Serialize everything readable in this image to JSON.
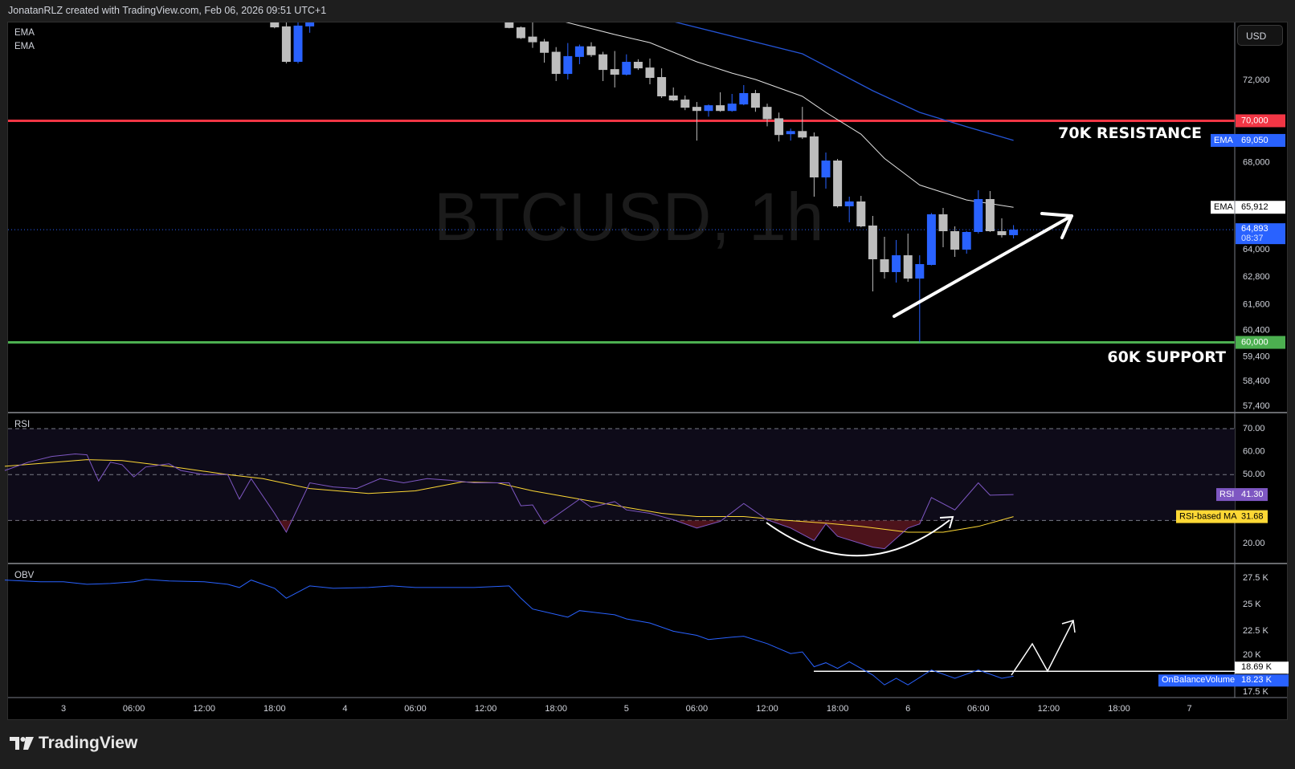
{
  "header": {
    "title": "JonatanRLZ created with TradingView.com, Feb 06, 2026 09:51 UTC+1"
  },
  "symbol_watermark": "BTCUSD, 1h",
  "currency_button": "USD",
  "legends": {
    "ema1": "EMA",
    "ema2": "EMA",
    "rsi": "RSI",
    "obv": "OBV"
  },
  "brand": {
    "name": "TradingView"
  },
  "colors": {
    "up": "#2962ff",
    "down": "#bdbdbd",
    "resistance": "#f23645",
    "support": "#4caf50",
    "ema_fast": "#e0e0e0",
    "ema_slow": "#2454d6",
    "rsi": "#7e57c2",
    "rsi_ma": "#fdd835",
    "obv": "#2962ff"
  },
  "annotations": {
    "resistance_text": "70K RESISTANCE",
    "support_text": "60K SUPPORT"
  },
  "levels": {
    "resistance": 70000,
    "support": 60000,
    "obv_line": 18.69
  },
  "price_axis": {
    "ticks": [
      "72,000",
      "68,000",
      "64,000",
      "62,800",
      "61,600",
      "60,400",
      "59,400",
      "58,400",
      "57,400"
    ],
    "resistance_label": "70,000",
    "support_label": "60,000",
    "ema_slow_tag": "EMA",
    "ema_slow_value": "69,050",
    "ema_fast_tag": "EMA",
    "ema_fast_value": "65,912",
    "last_price": "64,893",
    "countdown": "08:37"
  },
  "time_axis": [
    "3",
    "06:00",
    "12:00",
    "18:00",
    "4",
    "06:00",
    "12:00",
    "18:00",
    "5",
    "06:00",
    "12:00",
    "18:00",
    "6",
    "06:00",
    "12:00",
    "18:00",
    "7"
  ],
  "rsi_axis": {
    "ticks": [
      "70.00",
      "60.00",
      "50.00",
      "20.00"
    ],
    "rsi_tag": "RSI",
    "rsi_value": "41.30",
    "ma_tag": "RSI-based MA",
    "ma_value": "31.68"
  },
  "obv_axis": {
    "ticks": [
      "27.5 K",
      "25 K",
      "22.5 K",
      "20 K",
      "17.5 K"
    ],
    "line_value": "18.69 K",
    "obv_tag": "OnBalanceVolume",
    "obv_value": "18.23 K"
  },
  "chart_data": {
    "type": "candlestick",
    "symbol": "BTCUSD",
    "interval": "1h",
    "candle_fields": [
      "time",
      "open",
      "high",
      "low",
      "close"
    ],
    "candles": [
      [
        "02-03 18:00",
        75050,
        75100,
        74650,
        74700
      ],
      [
        "02-03 19:00",
        74750,
        75100,
        72850,
        72930
      ],
      [
        "02-03 20:00",
        72930,
        75200,
        72850,
        74790
      ],
      [
        "02-03 21:00",
        74750,
        75200,
        74420,
        75050
      ],
      [
        "02-04 14:00",
        75000,
        75050,
        74650,
        74670
      ],
      [
        "02-04 15:00",
        74700,
        74750,
        74100,
        74140
      ],
      [
        "02-04 16:00",
        74220,
        75000,
        73640,
        73930
      ],
      [
        "02-04 17:00",
        73970,
        74100,
        72890,
        73390
      ],
      [
        "02-04 18:00",
        73440,
        73680,
        71960,
        72320
      ],
      [
        "02-04 19:00",
        72320,
        73890,
        72040,
        73220
      ],
      [
        "02-04 20:00",
        73180,
        73810,
        72810,
        73720
      ],
      [
        "02-04 21:00",
        73720,
        73930,
        73180,
        73270
      ],
      [
        "02-04 22:00",
        73310,
        73440,
        71960,
        72520
      ],
      [
        "02-04 23:00",
        72560,
        73480,
        71640,
        72280
      ],
      [
        "02-05 00:00",
        72280,
        73310,
        72240,
        72930
      ],
      [
        "02-05 01:00",
        72930,
        73060,
        72520,
        72600
      ],
      [
        "02-05 02:00",
        72640,
        73100,
        71800,
        72120
      ],
      [
        "02-05 03:00",
        72160,
        72600,
        71120,
        71200
      ],
      [
        "02-05 04:00",
        71240,
        71640,
        70960,
        71000
      ],
      [
        "02-05 05:00",
        71040,
        71240,
        70520,
        70640
      ],
      [
        "02-05 06:00",
        70680,
        70920,
        69040,
        70480
      ],
      [
        "02-05 07:00",
        70480,
        70800,
        70200,
        70760
      ],
      [
        "02-05 08:00",
        70760,
        71400,
        70440,
        70480
      ],
      [
        "02-05 09:00",
        70480,
        71320,
        70440,
        70840
      ],
      [
        "02-05 10:00",
        70800,
        71760,
        70760,
        71360
      ],
      [
        "02-05 11:00",
        71360,
        71520,
        70440,
        70640
      ],
      [
        "02-05 12:00",
        70680,
        70840,
        69730,
        70080
      ],
      [
        "02-05 13:00",
        70120,
        70400,
        69000,
        69310
      ],
      [
        "02-05 14:00",
        69350,
        69620,
        69040,
        69500
      ],
      [
        "02-05 15:00",
        69500,
        70680,
        69120,
        69190
      ],
      [
        "02-05 16:00",
        69243,
        69434,
        66400,
        67296
      ],
      [
        "02-05 17:00",
        67296,
        68472,
        66772,
        68090
      ],
      [
        "02-05 18:00",
        68090,
        68166,
        65900,
        65957
      ],
      [
        "02-05 19:00",
        65957,
        66400,
        65225,
        66179
      ],
      [
        "02-05 20:00",
        66179,
        66437,
        65000,
        65043
      ],
      [
        "02-05 21:00",
        65080,
        65517,
        62166,
        63571
      ],
      [
        "02-05 22:00",
        63571,
        64573,
        62725,
        63006
      ],
      [
        "02-05 23:00",
        63006,
        64429,
        62550,
        63749
      ],
      [
        "02-06 00:00",
        63749,
        64717,
        62585,
        62725
      ],
      [
        "02-06 01:00",
        62725,
        63749,
        60000,
        63358
      ],
      [
        "02-06 02:00",
        63322,
        65650,
        63300,
        65591
      ],
      [
        "02-06 03:00",
        65591,
        65884,
        64105,
        64825
      ],
      [
        "02-06 04:00",
        64825,
        65043,
        63677,
        63999
      ],
      [
        "02-06 05:00",
        63999,
        64825,
        63820,
        64790
      ],
      [
        "02-06 06:00",
        64790,
        66698,
        64720,
        66289
      ],
      [
        "02-06 07:00",
        66289,
        66660,
        64790,
        64825
      ],
      [
        "02-06 08:00",
        64825,
        65407,
        64540,
        64647
      ],
      [
        "02-06 09:00",
        64647,
        65100,
        64500,
        64893
      ]
    ],
    "ema_fast": [
      [
        "02-04 18:00",
        75100
      ],
      [
        "02-04 23:00",
        74330
      ],
      [
        "02-05 02:00",
        73910
      ],
      [
        "02-05 06:00",
        72930
      ],
      [
        "02-05 09:00",
        72360
      ],
      [
        "02-05 11:00",
        72040
      ],
      [
        "02-05 15:00",
        71200
      ],
      [
        "02-05 17:00",
        70410
      ],
      [
        "02-05 20:00",
        69350
      ],
      [
        "02-05 22:00",
        68190
      ],
      [
        "02-06 01:00",
        66940
      ],
      [
        "02-06 05:00",
        66250
      ],
      [
        "02-06 09:00",
        65912
      ]
    ],
    "ema_slow": [
      [
        "02-05 02:00",
        75300
      ],
      [
        "02-05 04:00",
        75000
      ],
      [
        "02-05 15:00",
        73340
      ],
      [
        "02-05 21:00",
        71480
      ],
      [
        "02-06 01:00",
        70410
      ],
      [
        "02-06 05:00",
        69710
      ],
      [
        "02-06 09:00",
        69050
      ]
    ],
    "rsi": [
      [
        "02-02 19:00",
        51.8
      ],
      [
        "02-02 21:00",
        55.4
      ],
      [
        "02-02 23:00",
        57.9
      ],
      [
        "02-03 01:00",
        59
      ],
      [
        "02-03 02:00",
        58.6
      ],
      [
        "02-03 03:00",
        47.2
      ],
      [
        "02-03 04:00",
        55.4
      ],
      [
        "02-03 05:00",
        54.3
      ],
      [
        "02-03 06:00",
        49
      ],
      [
        "02-03 07:00",
        53.3
      ],
      [
        "02-03 09:00",
        54.7
      ],
      [
        "02-03 10:00",
        51.8
      ],
      [
        "02-03 12:00",
        50
      ],
      [
        "02-03 14:00",
        50
      ],
      [
        "02-03 15:00",
        39.3
      ],
      [
        "02-03 16:00",
        48.2
      ],
      [
        "02-03 18:00",
        33.1
      ],
      [
        "02-03 19:00",
        24.9
      ],
      [
        "02-03 21:00",
        46.4
      ],
      [
        "02-03 23:00",
        44.6
      ],
      [
        "02-04 01:00",
        43.9
      ],
      [
        "02-04 03:00",
        48.2
      ],
      [
        "02-04 05:00",
        46.4
      ],
      [
        "02-04 07:00",
        48.2
      ],
      [
        "02-04 09:00",
        47.5
      ],
      [
        "02-04 11:00",
        46.4
      ],
      [
        "02-04 14:00",
        46.4
      ],
      [
        "02-04 15:00",
        36.4
      ],
      [
        "02-04 16:00",
        36.8
      ],
      [
        "02-04 17:00",
        28.5
      ],
      [
        "02-04 19:00",
        35.7
      ],
      [
        "02-04 20:00",
        39.3
      ],
      [
        "02-04 21:00",
        35.7
      ],
      [
        "02-04 23:00",
        38.2
      ],
      [
        "02-05 00:00",
        34.6
      ],
      [
        "02-05 02:00",
        33.1
      ],
      [
        "02-05 04:00",
        30.3
      ],
      [
        "02-05 06:00",
        26.7
      ],
      [
        "02-05 08:00",
        29.6
      ],
      [
        "02-05 10:00",
        37.4
      ],
      [
        "02-05 12:00",
        30.3
      ],
      [
        "02-05 14:00",
        26.7
      ],
      [
        "02-05 16:00",
        21.3
      ],
      [
        "02-05 17:00",
        28.5
      ],
      [
        "02-05 18:00",
        23.1
      ],
      [
        "02-05 21:00",
        18.4
      ],
      [
        "02-05 22:00",
        17.7
      ],
      [
        "02-06 00:00",
        26.7
      ],
      [
        "02-06 01:00",
        28.5
      ],
      [
        "02-06 02:00",
        40
      ],
      [
        "02-06 04:00",
        34.6
      ],
      [
        "02-06 06:00",
        46.4
      ],
      [
        "02-06 07:00",
        41
      ],
      [
        "02-06 09:00",
        41.3
      ]
    ],
    "rsi_ma": [
      [
        "02-02 19:00",
        53.6
      ],
      [
        "02-03 02:00",
        56.5
      ],
      [
        "02-03 05:00",
        56.1
      ],
      [
        "02-03 09:00",
        53.6
      ],
      [
        "02-03 14:00",
        50
      ],
      [
        "02-03 17:00",
        48.2
      ],
      [
        "02-03 21:00",
        43.9
      ],
      [
        "02-04 02:00",
        41.8
      ],
      [
        "02-04 06:00",
        42.9
      ],
      [
        "02-04 10:00",
        46.8
      ],
      [
        "02-04 13:00",
        46.4
      ],
      [
        "02-04 16:00",
        42.9
      ],
      [
        "02-04 20:00",
        39.3
      ],
      [
        "02-05 00:00",
        35.7
      ],
      [
        "02-05 03:00",
        33.1
      ],
      [
        "02-05 06:00",
        31.7
      ],
      [
        "02-05 10:00",
        31.7
      ],
      [
        "02-05 13:00",
        30.3
      ],
      [
        "02-05 17:00",
        28.8
      ],
      [
        "02-05 20:00",
        27.4
      ],
      [
        "02-06 00:00",
        24.9
      ],
      [
        "02-06 03:00",
        24.9
      ],
      [
        "02-06 06:00",
        27.4
      ],
      [
        "02-06 09:00",
        31.68
      ]
    ],
    "obv_k": [
      [
        "02-02 19:00",
        27.3
      ],
      [
        "02-02 22:00",
        27.14
      ],
      [
        "02-03 00:00",
        27.14
      ],
      [
        "02-03 02:00",
        26.9
      ],
      [
        "02-03 04:00",
        26.98
      ],
      [
        "02-03 06:00",
        27.14
      ],
      [
        "02-03 07:00",
        27.37
      ],
      [
        "02-03 09:00",
        27.22
      ],
      [
        "02-03 12:00",
        27.14
      ],
      [
        "02-03 14:00",
        26.9
      ],
      [
        "02-03 15:00",
        26.6
      ],
      [
        "02-03 16:00",
        27.3
      ],
      [
        "02-03 18:00",
        26.52
      ],
      [
        "02-03 19:00",
        25.58
      ],
      [
        "02-03 21:00",
        26.75
      ],
      [
        "02-03 23:00",
        26.52
      ],
      [
        "02-04 02:00",
        26.6
      ],
      [
        "02-04 04:00",
        26.75
      ],
      [
        "02-04 06:00",
        26.6
      ],
      [
        "02-04 09:00",
        26.6
      ],
      [
        "02-04 11:00",
        26.6
      ],
      [
        "02-04 14:00",
        26.75
      ],
      [
        "02-04 15:00",
        25.58
      ],
      [
        "02-04 16:00",
        24.57
      ],
      [
        "02-04 19:00",
        23.8
      ],
      [
        "02-04 20:00",
        24.42
      ],
      [
        "02-04 23:00",
        24.02
      ],
      [
        "02-05 00:00",
        23.64
      ],
      [
        "02-05 02:00",
        23.25
      ],
      [
        "02-05 04:00",
        22.47
      ],
      [
        "02-05 06:00",
        22.08
      ],
      [
        "02-05 07:00",
        21.69
      ],
      [
        "02-05 09:00",
        21.92
      ],
      [
        "02-05 10:00",
        22
      ],
      [
        "02-05 12:00",
        21.3
      ],
      [
        "02-05 14:00",
        20.36
      ],
      [
        "02-05 15:00",
        20.52
      ],
      [
        "02-05 16:00",
        19.12
      ],
      [
        "02-05 17:00",
        19.5
      ],
      [
        "02-05 18:00",
        18.96
      ],
      [
        "02-05 19:00",
        19.58
      ],
      [
        "02-05 21:00",
        18.34
      ],
      [
        "02-05 22:00",
        17.41
      ],
      [
        "02-05 23:00",
        18.03
      ],
      [
        "02-06 00:00",
        17.41
      ],
      [
        "02-06 02:00",
        18.81
      ],
      [
        "02-06 04:00",
        18.03
      ],
      [
        "02-06 06:00",
        18.81
      ],
      [
        "02-06 08:00",
        18.03
      ],
      [
        "02-06 09:00",
        18.23
      ]
    ],
    "price_scale": "log",
    "rsi_bands": [
      70,
      50,
      30
    ]
  }
}
